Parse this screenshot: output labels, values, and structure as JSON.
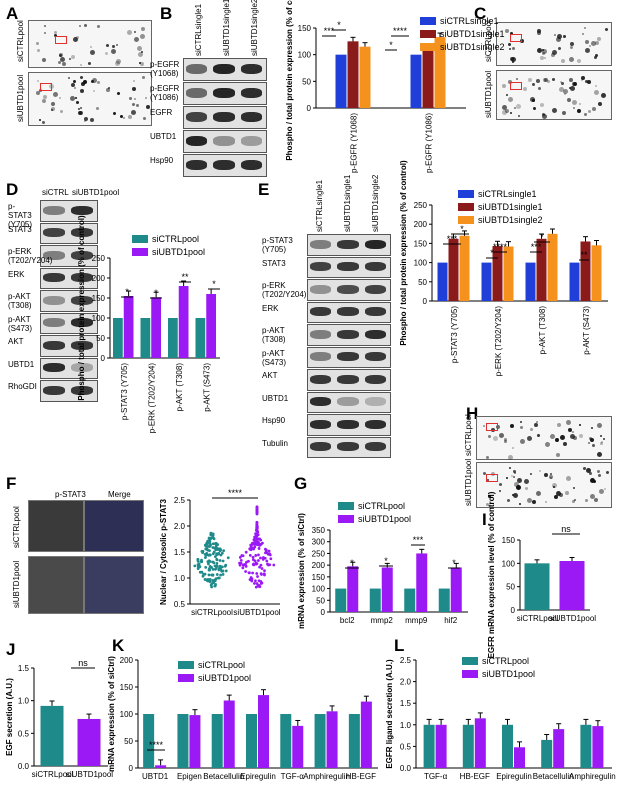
{
  "panels": {
    "A": "A",
    "B": "B",
    "C": "C",
    "D": "D",
    "E": "E",
    "F": "F",
    "G": "G",
    "H": "H",
    "I": "I",
    "J": "J",
    "K": "K",
    "L": "L"
  },
  "arrays": {
    "A": [
      "siCTRLpool",
      "siUBTD1pool"
    ],
    "C": [
      "siCTRLpool",
      "siUBTD1pool"
    ],
    "H": [
      "siCTRLpool",
      "siUBTD1pool"
    ]
  },
  "blots": {
    "B": {
      "lanes": [
        "siCTRLsingle1",
        "siUBTD1single1",
        "siUBTD1single2"
      ],
      "rows": [
        "p-EGFR (Y1068)",
        "p-EGFR (Y1086)",
        "EGFR",
        "UBTD1",
        "Hsp90"
      ]
    },
    "D": {
      "lanes": [
        "siCTRL",
        "siUBTD1pool"
      ],
      "rows": [
        "p-STAT3 (Y705)",
        "STAT3",
        "p-ERK (T202/Y204)",
        "ERK",
        "p-AKT (T308)",
        "p-AKT (S473)",
        "AKT",
        "UBTD1",
        "RhoGDI"
      ]
    },
    "E": {
      "lanes": [
        "siCTRLsingle1",
        "siUBTD1single1",
        "siUBTD1single2"
      ],
      "rows": [
        "p-STAT3 (Y705)",
        "STAT3",
        "p-ERK (T202/Y204)",
        "ERK",
        "p-AKT (T308)",
        "p-AKT (S473)",
        "AKT",
        "UBTD1",
        "Hsp90",
        "Tubulin"
      ]
    }
  },
  "micro": {
    "cols": [
      "p-STAT3",
      "Merge"
    ],
    "rows": [
      "siCTRLpool",
      "siUBTD1pool"
    ]
  },
  "colors": {
    "ctrl_teal": "#1f8a8a",
    "kd_purple": "#9b19f5",
    "blue": "#1f3fd8",
    "darkred": "#8b1a1a",
    "orange": "#f5921e"
  },
  "chart_data": [
    {
      "id": "B",
      "type": "bar",
      "categories": [
        "p-EGFR (Y1068)",
        "p-EGFR (Y1086)"
      ],
      "series": [
        {
          "name": "siCTRLsingle1",
          "values": [
            100,
            100
          ]
        },
        {
          "name": "siUBTD1single1",
          "values": [
            125,
            112
          ]
        },
        {
          "name": "siUBTD1single2",
          "values": [
            115,
            133
          ]
        }
      ],
      "ylabel": "Phospho / total protein expression (% of control)",
      "ylim": [
        0,
        150
      ],
      "yticks": [
        "0",
        "50",
        "100",
        "150"
      ],
      "significance": [
        "***",
        "*",
        "*",
        "****"
      ],
      "legend": "top-right"
    },
    {
      "id": "D",
      "type": "bar",
      "categories": [
        "p-STAT3 (Y705)",
        "p-ERK (T202/Y204)",
        "p-AKT (T308)",
        "p-AKT (S473)"
      ],
      "series": [
        {
          "name": "siCTRLpool",
          "values": [
            100,
            100,
            100,
            100
          ]
        },
        {
          "name": "siUBTD1pool",
          "values": [
            155,
            152,
            180,
            160
          ]
        }
      ],
      "ylabel": "Phospho / total protein expression (% of control)",
      "ylim": [
        0,
        250
      ],
      "yticks": [
        "0",
        "50",
        "100",
        "150",
        "200",
        "250"
      ],
      "significance": [
        "*",
        "*",
        "**",
        "*"
      ],
      "legend": "top"
    },
    {
      "id": "E",
      "type": "bar",
      "categories": [
        "p-STAT3 (Y705)",
        "p-ERK (T202/Y204)",
        "p-AKT (T308)",
        "p-AKT (S473)"
      ],
      "series": [
        {
          "name": "siCTRLsingle1",
          "values": [
            100,
            100,
            100,
            100
          ]
        },
        {
          "name": "siUBTD1single1",
          "values": [
            162,
            143,
            162,
            155
          ]
        },
        {
          "name": "siUBTD1single2",
          "values": [
            170,
            142,
            175,
            145
          ]
        }
      ],
      "ylabel": "Phospho / total protein expression (% of control)",
      "ylim": [
        0,
        250
      ],
      "yticks": [
        "0",
        "50",
        "100",
        "150",
        "200",
        "250"
      ],
      "significance": [
        "***",
        "*",
        "*",
        "****",
        "***",
        "*",
        "**"
      ],
      "legend": "top"
    },
    {
      "id": "F",
      "type": "scatter",
      "categories": [
        "siCTRLpool",
        "siUBTD1pool"
      ],
      "ylabel": "Nuclear / Cytosolic p-STAT3",
      "ylim": [
        0.5,
        2.5
      ],
      "yticks": [
        "0.5",
        "1.0",
        "1.5",
        "2.0",
        "2.5"
      ],
      "significance": [
        "****"
      ],
      "series": [
        {
          "name": "siCTRLpool",
          "values": [
            0.9,
            1.0,
            1.1,
            1.2,
            1.25,
            1.3,
            1.4,
            1.5,
            1.6,
            1.7,
            1.8
          ]
        },
        {
          "name": "siUBTD1pool",
          "values": [
            0.9,
            1.05,
            1.2,
            1.3,
            1.4,
            1.5,
            1.6,
            1.7,
            1.85,
            2.0,
            2.3
          ]
        }
      ]
    },
    {
      "id": "G",
      "type": "bar",
      "categories": [
        "bcl2",
        "mmp2",
        "mmp9",
        "hif2"
      ],
      "series": [
        {
          "name": "siCTRLpool",
          "values": [
            100,
            100,
            100,
            100
          ]
        },
        {
          "name": "siUBTD1pool",
          "values": [
            195,
            190,
            250,
            190
          ]
        }
      ],
      "ylabel": "mRNA expression (% of siCtrl)",
      "ylim": [
        0,
        350
      ],
      "yticks": [
        "0",
        "50",
        "100",
        "150",
        "200",
        "250",
        "300",
        "350"
      ],
      "significance": [
        "*",
        "*",
        "***",
        "*"
      ],
      "legend": "top"
    },
    {
      "id": "I",
      "type": "bar",
      "categories": [
        "siCTRLpool",
        "siUBTD1pool"
      ],
      "values": [
        100,
        105
      ],
      "ylabel": "EGFR mRNA expression level (% of control)",
      "ylim": [
        0,
        150
      ],
      "yticks": [
        "0",
        "50",
        "100",
        "150"
      ],
      "significance": [
        "ns"
      ]
    },
    {
      "id": "J",
      "type": "bar",
      "categories": [
        "siCTRLpool",
        "siUBTD1pool"
      ],
      "values": [
        0.92,
        0.72
      ],
      "ylabel": "EGF secretion (A.U.)",
      "ylim": [
        0,
        1.5
      ],
      "yticks": [
        "0.0",
        "0.5",
        "1.0",
        "1.5"
      ],
      "significance": [
        "ns"
      ]
    },
    {
      "id": "K",
      "type": "bar",
      "categories": [
        "UBTD1",
        "Epigen",
        "Betacellulin",
        "Epiregulin",
        "TGF-α",
        "Amphiregulin",
        "HB-EGF"
      ],
      "series": [
        {
          "name": "siCTRLpool",
          "values": [
            100,
            100,
            100,
            100,
            100,
            100,
            100
          ]
        },
        {
          "name": "siUBTD1pool",
          "values": [
            5,
            98,
            125,
            135,
            78,
            105,
            123
          ]
        }
      ],
      "ylabel": "mRNA expression (% of siCtrl)",
      "ylim": [
        0,
        200
      ],
      "yticks": [
        "0",
        "50",
        "100",
        "150",
        "200"
      ],
      "significance": [
        "****"
      ],
      "legend": "top-left"
    },
    {
      "id": "L",
      "type": "bar",
      "categories": [
        "TGF-α",
        "HB-EGF",
        "Epiregulin",
        "Betacellulin",
        "Amphiregulin"
      ],
      "series": [
        {
          "name": "siCTRLpool",
          "values": [
            1.0,
            1.0,
            1.0,
            0.65,
            1.0
          ]
        },
        {
          "name": "siUBTD1pool",
          "values": [
            1.0,
            1.15,
            0.48,
            0.9,
            0.97
          ]
        }
      ],
      "ylabel": "EGFR ligand secretion (A.U.)",
      "ylim": [
        0,
        2.5
      ],
      "yticks": [
        "0.0",
        "0.5",
        "1.0",
        "1.5",
        "2.0",
        "2.5"
      ],
      "legend": "top-left"
    }
  ]
}
